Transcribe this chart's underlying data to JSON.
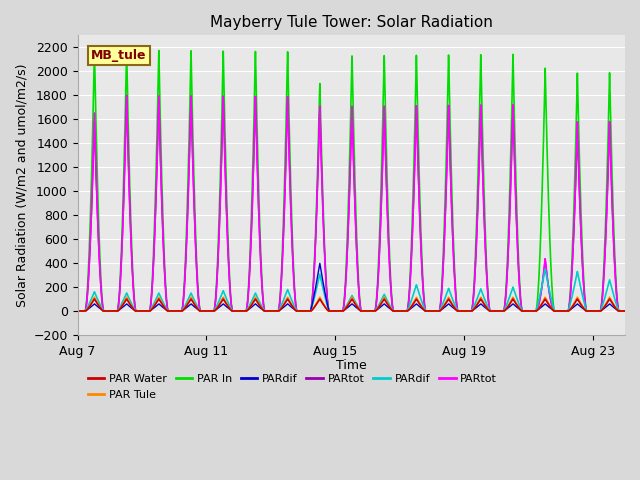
{
  "title": "Mayberry Tule Tower: Solar Radiation",
  "ylabel": "Solar Radiation (W/m2 and umol/m2/s)",
  "xlabel": "Time",
  "ylim": [
    -200,
    2300
  ],
  "yticks": [
    -200,
    0,
    200,
    400,
    600,
    800,
    1000,
    1200,
    1400,
    1600,
    1800,
    2000,
    2200
  ],
  "bg_color": "#d9d9d9",
  "plot_bg_color": "#e8e8e8",
  "legend_label": "MB_tule",
  "legend_box_facecolor": "#ffff99",
  "legend_box_edgecolor": "#8b6914",
  "legend_text_color": "#800000",
  "series": [
    {
      "label": "PAR Water",
      "color": "#cc0000"
    },
    {
      "label": "PAR Tule",
      "color": "#ff8800"
    },
    {
      "label": "PAR In",
      "color": "#00dd00"
    },
    {
      "label": "PARdif",
      "color": "#0000cc"
    },
    {
      "label": "PARtot",
      "color": "#9900aa"
    },
    {
      "label": "PARdif",
      "color": "#00cccc"
    },
    {
      "label": "PARtot",
      "color": "#ff00ff"
    }
  ],
  "x_start_day": 7,
  "x_tick_days": [
    7,
    11,
    15,
    19,
    23
  ],
  "n_days": 17,
  "samples_per_day": 288
}
